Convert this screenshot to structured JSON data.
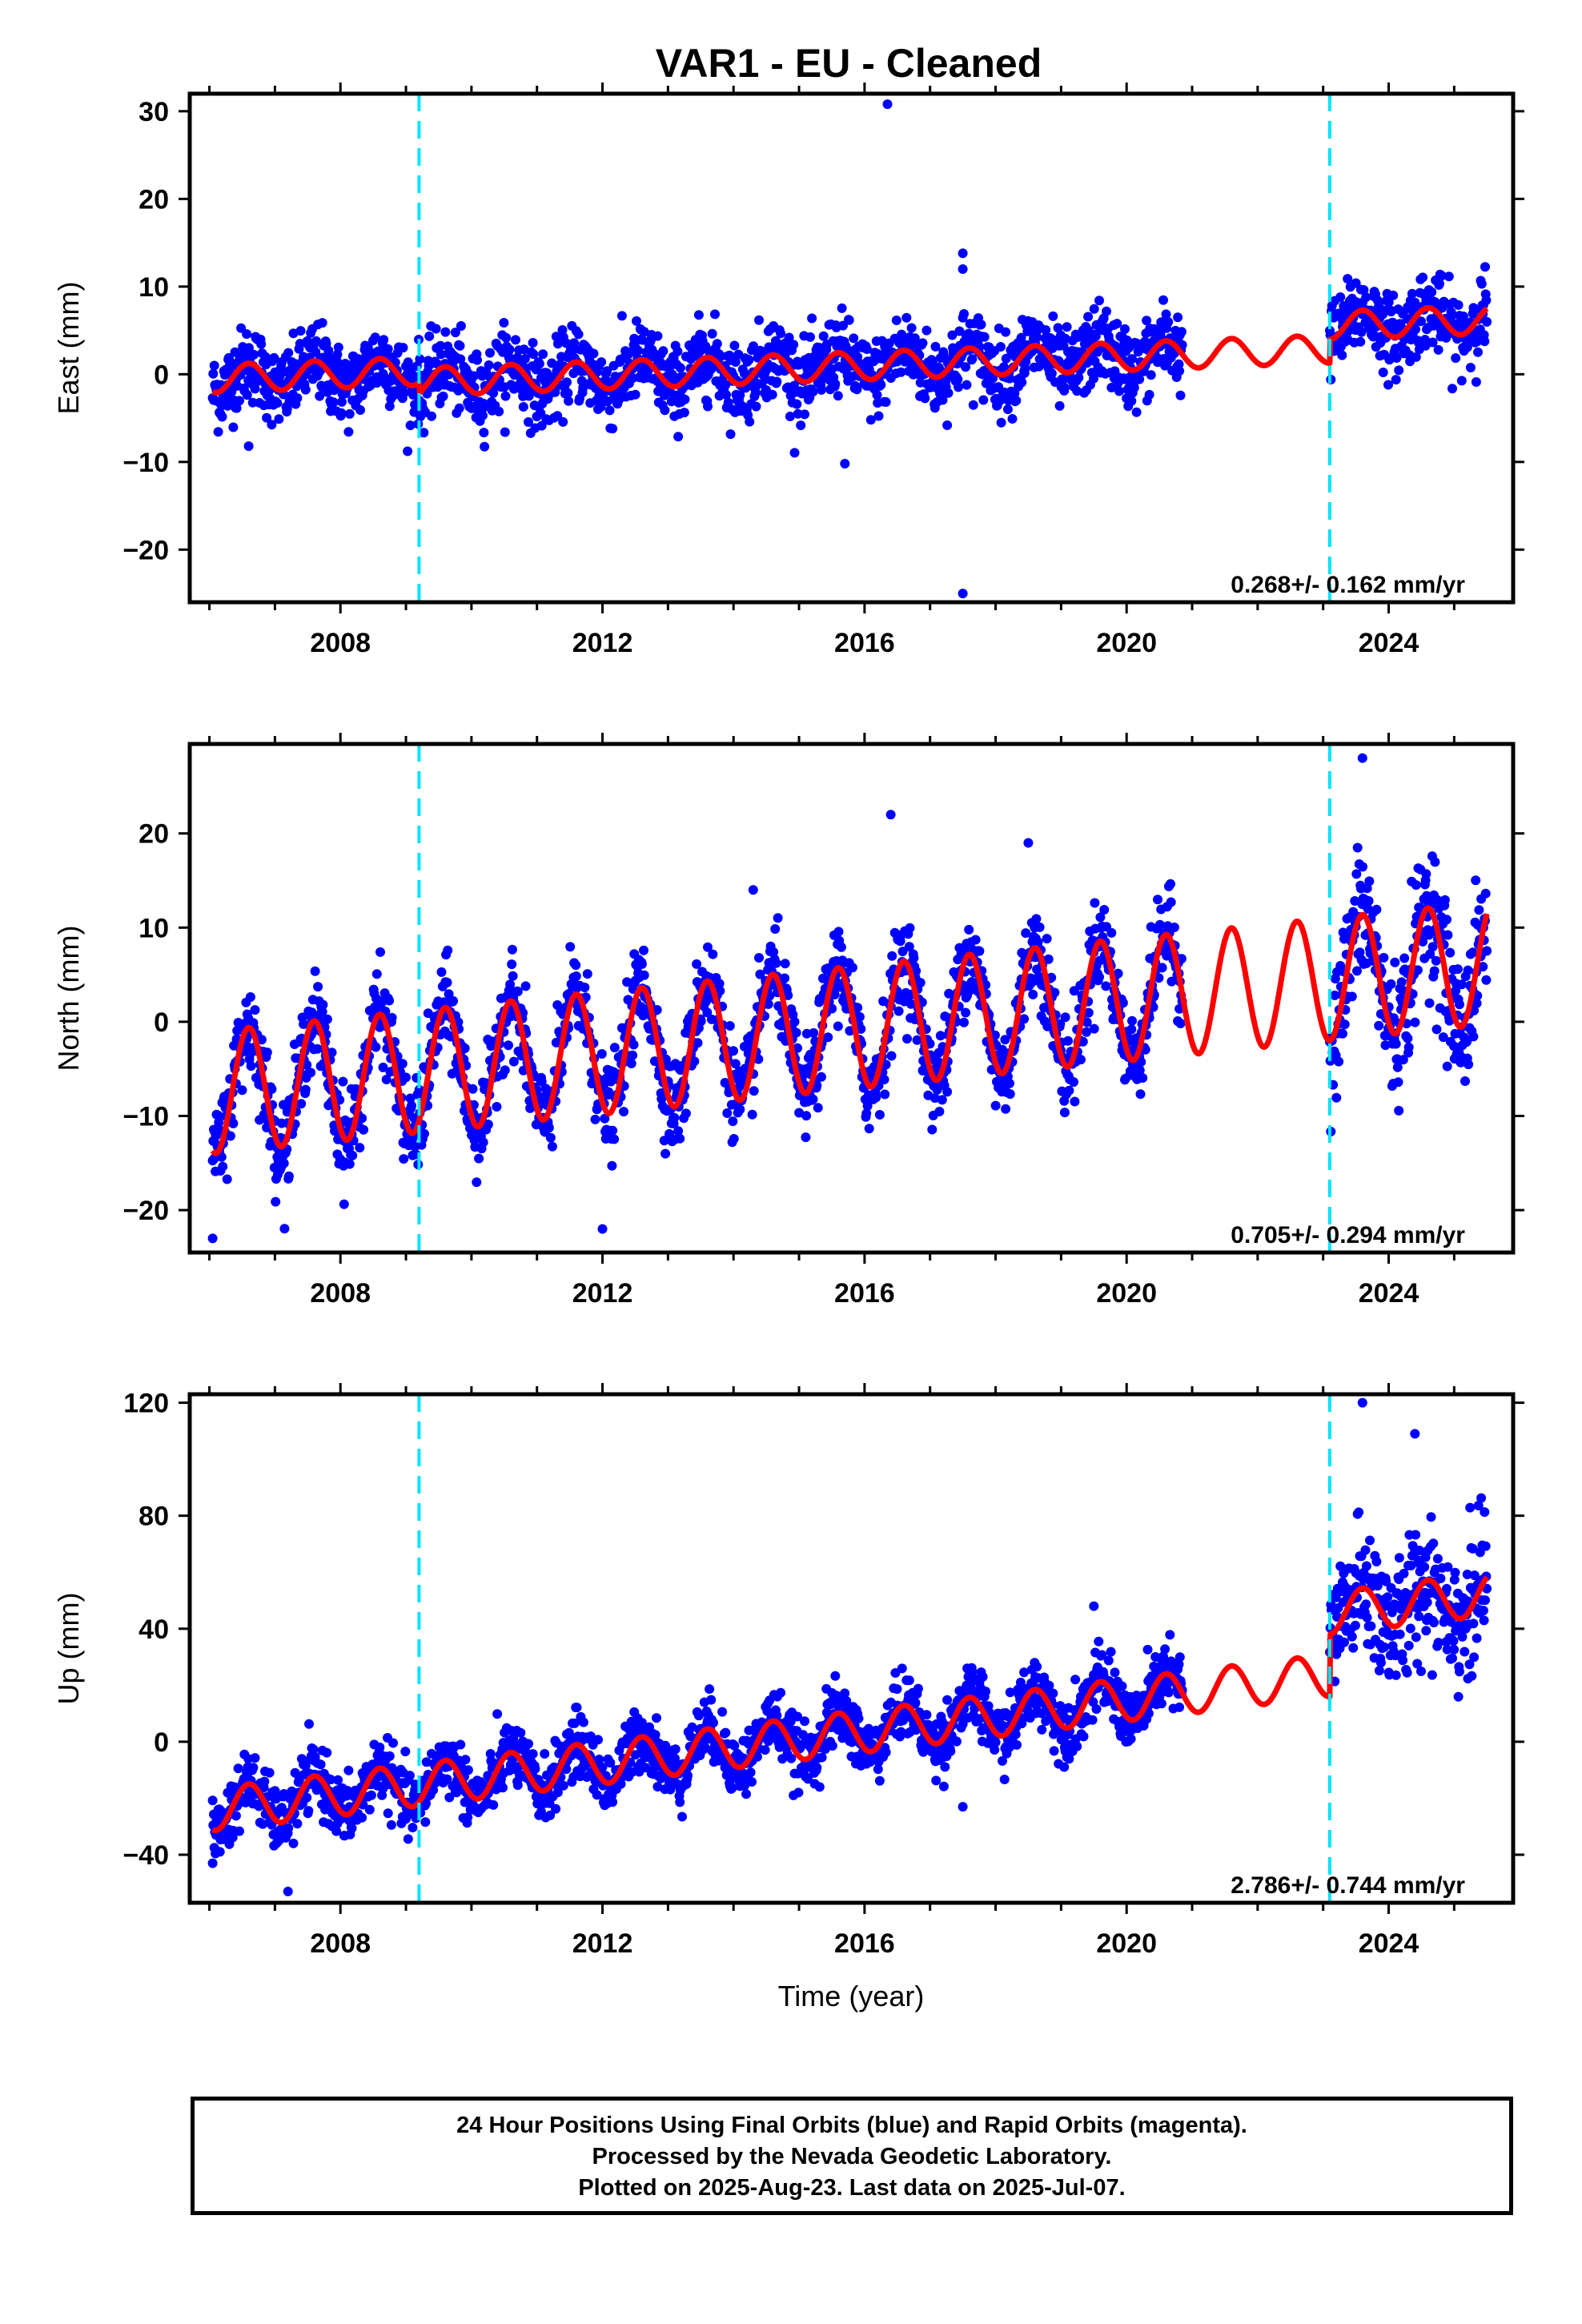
{
  "title": "VAR1  - EU - Cleaned",
  "xlabel": "Time (year)",
  "footer": [
    "24 Hour Positions Using Final Orbits (blue) and Rapid Orbits (magenta).",
    "Processed by the Nevada Geodetic Laboratory.",
    "Plotted on 2025-Aug-23. Last data on 2025-Jul-07."
  ],
  "colors": {
    "final_orbit_points": "#0000ff",
    "model_fit": "#ff0000",
    "equipment_change": "#00e5ff",
    "axes": "#000000"
  },
  "chart_data": [
    {
      "type": "scatter",
      "component": "East",
      "ylabel": "East (mm)",
      "xlim": [
        2005.7,
        2025.9
      ],
      "ylim": [
        -26,
        32
      ],
      "xticks": [
        "2008",
        "2012",
        "2016",
        "2020",
        "2024"
      ],
      "yticks": [
        "30",
        "20",
        "10",
        "0",
        "−10",
        "−20"
      ],
      "rate_label": "0.268+/- 0.162 mm/yr",
      "breaks": [
        2009.2,
        2023.1
      ],
      "data_span": [
        2006.05,
        2025.5
      ],
      "gap": [
        2020.85,
        2023.1
      ],
      "model": {
        "offset": -0.5,
        "rate_mm_yr": 0.268,
        "annual_amp": 1.6,
        "segment_offsets": [
          0,
          -1.2,
          1.5
        ]
      },
      "outliers": [
        [
          2016.35,
          30.8
        ],
        [
          2017.5,
          13.8
        ],
        [
          2017.5,
          12.0
        ],
        [
          2017.5,
          -25.0
        ],
        [
          2015.7,
          -10.2
        ],
        [
          2006.6,
          -8.2
        ]
      ],
      "scatter_spread": 2.2
    },
    {
      "type": "scatter",
      "component": "North",
      "ylabel": "North (mm)",
      "xlim": [
        2005.7,
        2025.9
      ],
      "ylim": [
        -24.5,
        29.5
      ],
      "xticks": [
        "2008",
        "2012",
        "2016",
        "2020",
        "2024"
      ],
      "yticks": [
        "20",
        "10",
        "0",
        "−10",
        "−20"
      ],
      "rate_label": "0.705+/- 0.294 mm/yr",
      "breaks": [
        2009.2,
        2023.1
      ],
      "data_span": [
        2006.05,
        2025.5
      ],
      "gap": [
        2020.85,
        2023.1
      ],
      "model": {
        "offset": -7.5,
        "rate_mm_yr": 0.705,
        "annual_amp": 6.5,
        "segment_offsets": [
          0,
          0,
          0
        ]
      },
      "outliers": [
        [
          2016.4,
          22.0
        ],
        [
          2012.0,
          -22.0
        ],
        [
          2006.05,
          -23.0
        ],
        [
          2023.6,
          28.0
        ],
        [
          2018.5,
          19.0
        ],
        [
          2014.3,
          14.0
        ]
      ],
      "scatter_spread": 2.4
    },
    {
      "type": "scatter",
      "component": "Up",
      "ylabel": "Up (mm)",
      "xlim": [
        2005.7,
        2025.9
      ],
      "ylim": [
        -57,
        123
      ],
      "xticks": [
        "2008",
        "2012",
        "2016",
        "2020",
        "2024"
      ],
      "yticks": [
        "120",
        "80",
        "40",
        "0",
        "−40"
      ],
      "rate_label": "2.786+/- 0.744 mm/yr",
      "breaks": [
        2009.2,
        2023.1
      ],
      "data_span": [
        2006.05,
        2025.5
      ],
      "gap": [
        2020.85,
        2023.1
      ],
      "model": {
        "offset": -24,
        "rate_mm_yr": 2.786,
        "annual_amp": 7.5,
        "segment_offsets": [
          0,
          0,
          22
        ]
      },
      "outliers": [
        [
          2023.6,
          120.0
        ],
        [
          2024.4,
          109.0
        ],
        [
          2007.2,
          -53.0
        ],
        [
          2006.05,
          -43.0
        ],
        [
          2017.5,
          -23.0
        ],
        [
          2019.5,
          48.0
        ]
      ],
      "scatter_spread": 5.5
    }
  ]
}
